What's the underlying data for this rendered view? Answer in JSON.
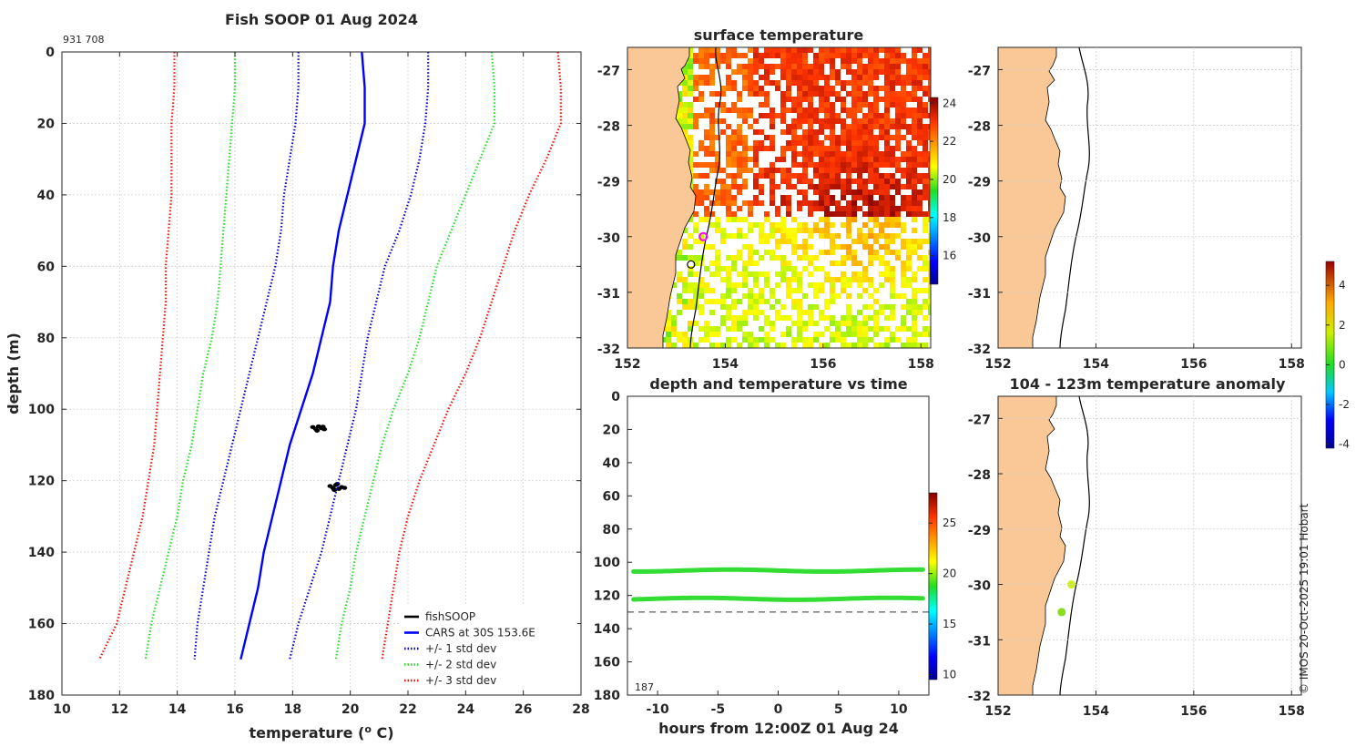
{
  "figure": {
    "copyright": "© IMOS 20-Oct-2025 19:01 Hobart"
  },
  "colors": {
    "cars": "#0000ff",
    "std1": "#0000cc",
    "std2": "#22dd22",
    "std3": "#ee1100",
    "land": "#f9c896",
    "fish": "#000000"
  },
  "chart_data": [
    {
      "id": "profile",
      "type": "line",
      "title": "Fish SOOP 01 Aug 2024",
      "id_label": "931 708",
      "xlabel": "temperature (",
      "xlabel_sup": "o",
      "xlabel_end": " C)",
      "ylabel": "depth (m)",
      "xlim": [
        10,
        28
      ],
      "ylim": [
        0,
        180
      ],
      "y_reversed": true,
      "xticks": [
        10,
        12,
        14,
        16,
        18,
        20,
        22,
        24,
        26,
        28
      ],
      "yticks": [
        0,
        20,
        40,
        60,
        80,
        100,
        120,
        140,
        160,
        180
      ],
      "grid": true,
      "legend_position": "bottom-right",
      "series": [
        {
          "name": "fishSOOP",
          "style": "marker",
          "color": "#000000",
          "points": [
            [
              18.7,
              105
            ],
            [
              18.8,
              105.5
            ],
            [
              18.9,
              104.8
            ],
            [
              19.0,
              105.3
            ],
            [
              19.1,
              105.6
            ],
            [
              18.85,
              106
            ],
            [
              19.05,
              104.9
            ],
            [
              19.3,
              121.5
            ],
            [
              19.4,
              122
            ],
            [
              19.5,
              121.2
            ],
            [
              19.6,
              122.3
            ],
            [
              19.7,
              121.8
            ],
            [
              19.8,
              122
            ],
            [
              19.45,
              122.6
            ],
            [
              19.55,
              120.9
            ]
          ]
        },
        {
          "name": "CARS at 30S 153.6E",
          "style": "solid",
          "color": "#0000ff",
          "depth": [
            0,
            5,
            10,
            20,
            30,
            40,
            50,
            60,
            70,
            80,
            90,
            100,
            110,
            120,
            130,
            140,
            150,
            160,
            170
          ],
          "values": [
            20.4,
            20.45,
            20.5,
            20.5,
            20.2,
            19.9,
            19.6,
            19.4,
            19.3,
            19.0,
            18.7,
            18.3,
            17.9,
            17.6,
            17.3,
            17.0,
            16.8,
            16.5,
            16.2
          ]
        },
        {
          "name": "+/- 1 std dev",
          "style": "dotted",
          "color": "#0000cc",
          "depth": [
            0,
            5,
            10,
            20,
            30,
            40,
            50,
            60,
            70,
            80,
            90,
            100,
            110,
            120,
            130,
            140,
            150,
            160,
            170
          ],
          "values": [
            18.2,
            18.2,
            18.2,
            18.1,
            17.9,
            17.7,
            17.6,
            17.4,
            17.1,
            16.8,
            16.5,
            16.2,
            15.9,
            15.6,
            15.3,
            15.1,
            14.9,
            14.7,
            14.6
          ]
        },
        {
          "name": "_std1_hi",
          "style": "dotted",
          "color": "#0000cc",
          "depth": [
            0,
            5,
            10,
            20,
            30,
            40,
            50,
            60,
            70,
            80,
            90,
            100,
            110,
            120,
            130,
            140,
            150,
            160,
            170
          ],
          "values": [
            22.7,
            22.7,
            22.7,
            22.6,
            22.4,
            22.1,
            21.7,
            21.2,
            20.9,
            20.6,
            20.4,
            20.2,
            19.9,
            19.6,
            19.3,
            19.0,
            18.6,
            18.2,
            17.9
          ]
        },
        {
          "name": "+/- 2 std dev",
          "style": "dotted",
          "color": "#22dd22",
          "depth": [
            0,
            5,
            10,
            20,
            30,
            40,
            50,
            60,
            70,
            80,
            90,
            100,
            110,
            120,
            130,
            140,
            150,
            160,
            170
          ],
          "values": [
            16.0,
            16.0,
            16.0,
            15.9,
            15.8,
            15.7,
            15.6,
            15.5,
            15.4,
            15.2,
            14.9,
            14.7,
            14.5,
            14.2,
            14.0,
            13.7,
            13.4,
            13.1,
            12.9
          ]
        },
        {
          "name": "_std2_hi",
          "style": "dotted",
          "color": "#22dd22",
          "depth": [
            0,
            5,
            10,
            20,
            30,
            40,
            50,
            60,
            70,
            80,
            90,
            100,
            110,
            120,
            130,
            140,
            150,
            160,
            170
          ],
          "values": [
            24.9,
            24.95,
            25.0,
            25.0,
            24.5,
            24.0,
            23.5,
            23.0,
            22.7,
            22.4,
            22.0,
            21.5,
            21.1,
            20.8,
            20.5,
            20.2,
            20.0,
            19.7,
            19.5
          ]
        },
        {
          "name": "+/- 3 std dev",
          "style": "dotted",
          "color": "#ee1100",
          "depth": [
            0,
            5,
            10,
            20,
            30,
            40,
            50,
            60,
            70,
            80,
            90,
            100,
            110,
            120,
            130,
            140,
            150,
            160,
            170
          ],
          "values": [
            13.9,
            13.9,
            13.9,
            13.8,
            13.8,
            13.8,
            13.7,
            13.6,
            13.6,
            13.5,
            13.4,
            13.3,
            13.2,
            13.0,
            12.8,
            12.5,
            12.2,
            11.9,
            11.3
          ]
        },
        {
          "name": "_std3_hi",
          "style": "dotted",
          "color": "#ee1100",
          "depth": [
            0,
            5,
            10,
            20,
            30,
            40,
            50,
            60,
            70,
            80,
            90,
            100,
            110,
            120,
            130,
            140,
            150,
            160,
            170
          ],
          "values": [
            27.2,
            27.25,
            27.3,
            27.3,
            26.8,
            26.2,
            25.7,
            25.3,
            24.9,
            24.5,
            24.0,
            23.4,
            22.9,
            22.4,
            22.0,
            21.7,
            21.5,
            21.3,
            21.1
          ]
        }
      ],
      "legend": [
        "fishSOOP",
        "CARS at 30S 153.6E",
        "+/- 1 std dev",
        "+/- 2 std dev",
        "+/- 3 std dev"
      ]
    },
    {
      "id": "surface",
      "type": "heatmap",
      "title": "surface temperature",
      "xlim": [
        152,
        158.2
      ],
      "ylim": [
        -32,
        -26.6
      ],
      "xticks": [
        152,
        154,
        156,
        158
      ],
      "yticks": [
        -27,
        -28,
        -29,
        -30,
        -31,
        -32
      ],
      "colorbar": {
        "range": [
          14.5,
          24.3
        ],
        "ticks": [
          16,
          18,
          20,
          22,
          24
        ]
      },
      "markers": [
        {
          "lon": 153.55,
          "lat": -30.0,
          "color": "#ff00ff",
          "label": "magenta circle"
        },
        {
          "lon": 153.3,
          "lat": -30.5,
          "color": "#000000",
          "label": "black circle"
        }
      ]
    },
    {
      "id": "map_top",
      "type": "scatter",
      "title": "",
      "xlim": [
        152,
        158.2
      ],
      "ylim": [
        -32,
        -26.6
      ],
      "xticks": [
        152,
        154,
        156,
        158
      ],
      "yticks": [
        -27,
        -28,
        -29,
        -30,
        -31,
        -32
      ],
      "points": []
    },
    {
      "id": "timeseries",
      "type": "scatter",
      "title": "depth and temperature vs time",
      "xlabel": "hours from 12:00Z 01 Aug 24",
      "xlim": [
        -12.5,
        12.5
      ],
      "ylim": [
        0,
        180
      ],
      "y_reversed": true,
      "xticks": [
        -10,
        -5,
        0,
        5,
        10
      ],
      "yticks": [
        0,
        20,
        40,
        60,
        80,
        100,
        120,
        140,
        160,
        180
      ],
      "note": "187",
      "bottom_dashed_depth": 130,
      "series": [
        {
          "name": "upper sensor",
          "depth": 105,
          "temperature": 19.3
        },
        {
          "name": "lower sensor",
          "depth": 122,
          "temperature": 19.6
        }
      ],
      "colorbar": {
        "range": [
          9.5,
          28
        ],
        "ticks": [
          10,
          15,
          20,
          25
        ]
      }
    },
    {
      "id": "anomaly",
      "type": "scatter",
      "title": "104 - 123m temperature anomaly",
      "xlim": [
        152,
        158.2
      ],
      "ylim": [
        -32,
        -26.6
      ],
      "xticks": [
        152,
        154,
        156,
        158
      ],
      "yticks": [
        -27,
        -28,
        -29,
        -30,
        -31,
        -32
      ],
      "points": [
        {
          "lon": 153.5,
          "lat": -30.0,
          "anomaly": 1.2
        },
        {
          "lon": 153.3,
          "lat": -30.5,
          "anomaly": 0.8
        }
      ],
      "colorbar": {
        "range": [
          -4.2,
          5.2
        ],
        "ticks": [
          -4,
          -2,
          0,
          2,
          4
        ]
      }
    }
  ]
}
